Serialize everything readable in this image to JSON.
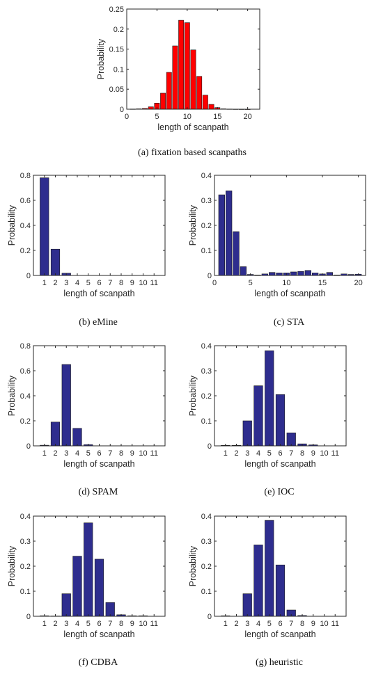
{
  "colors": {
    "red_bar": "#ff0000",
    "blue_bar": "#2e2d8e",
    "edge": "#1a1a1a"
  },
  "chart_data": [
    {
      "id": "a",
      "type": "bar",
      "caption": "(a) fixation based scanpaths",
      "xlabel": "length of scanpath",
      "ylabel": "Probability",
      "xlim": [
        0,
        22
      ],
      "ylim": [
        0,
        0.25
      ],
      "xticks": [
        0,
        5,
        10,
        15,
        20
      ],
      "xtick_labels": [
        "0",
        "5",
        "10",
        "15",
        "20"
      ],
      "yticks": [
        0,
        0.05,
        0.1,
        0.15,
        0.2,
        0.25
      ],
      "ytick_labels": [
        "0",
        "0.05",
        "0.1",
        "0.15",
        "0.2",
        "0.25"
      ],
      "grid": false,
      "color": "red",
      "x": [
        1,
        2,
        3,
        4,
        5,
        6,
        7,
        8,
        9,
        10,
        11,
        12,
        13,
        14,
        15,
        16,
        17,
        18,
        19,
        20
      ],
      "values": [
        0.0005,
        0.001,
        0.002,
        0.006,
        0.015,
        0.04,
        0.092,
        0.158,
        0.222,
        0.216,
        0.148,
        0.082,
        0.035,
        0.012,
        0.004,
        0.001,
        0.0005,
        0.0003,
        0.0002,
        0.0001
      ]
    },
    {
      "id": "b",
      "type": "bar",
      "caption": "(b) eMine",
      "xlabel": "length of scanpath",
      "ylabel": "Probability",
      "xlim": [
        0,
        12
      ],
      "ylim": [
        0,
        0.8
      ],
      "xticks": [
        1,
        2,
        3,
        4,
        5,
        6,
        7,
        8,
        9,
        10,
        11
      ],
      "xtick_labels": [
        "1",
        "2",
        "3",
        "4",
        "5",
        "6",
        "7",
        "8",
        "9",
        "10",
        "11"
      ],
      "yticks": [
        0,
        0.2,
        0.4,
        0.6,
        0.8
      ],
      "ytick_labels": [
        "0",
        "0.2",
        "0.4",
        "0.6",
        "0.8"
      ],
      "grid": false,
      "color": "blue",
      "x": [
        1,
        2,
        3,
        4,
        5,
        6,
        7,
        8,
        9,
        10,
        11
      ],
      "values": [
        0.78,
        0.21,
        0.018,
        0,
        0,
        0,
        0,
        0,
        0,
        0,
        0
      ]
    },
    {
      "id": "c",
      "type": "bar",
      "caption": "(c) STA",
      "xlabel": "length of scanpath",
      "ylabel": "Probability",
      "xlim": [
        0,
        21
      ],
      "ylim": [
        0,
        0.4
      ],
      "xticks": [
        0,
        5,
        10,
        15,
        20
      ],
      "xtick_labels": [
        "0",
        "5",
        "10",
        "15",
        "20"
      ],
      "yticks": [
        0,
        0.1,
        0.2,
        0.3,
        0.4
      ],
      "ytick_labels": [
        "0",
        "0.1",
        "0.2",
        "0.3",
        "0.4"
      ],
      "grid": false,
      "color": "blue",
      "x": [
        1,
        2,
        3,
        4,
        5,
        6,
        7,
        8,
        9,
        10,
        11,
        12,
        13,
        14,
        15,
        16,
        17,
        18,
        19,
        20
      ],
      "values": [
        0.322,
        0.338,
        0.175,
        0.035,
        0.004,
        0.002,
        0.006,
        0.012,
        0.01,
        0.01,
        0.014,
        0.016,
        0.02,
        0.01,
        0.006,
        0.012,
        0.002,
        0.006,
        0.004,
        0.005
      ]
    },
    {
      "id": "d",
      "type": "bar",
      "caption": "(d) SPAM",
      "xlabel": "length of scanpath",
      "ylabel": "Probability",
      "xlim": [
        0,
        12
      ],
      "ylim": [
        0,
        0.8
      ],
      "xticks": [
        1,
        2,
        3,
        4,
        5,
        6,
        7,
        8,
        9,
        10,
        11
      ],
      "xtick_labels": [
        "1",
        "2",
        "3",
        "4",
        "5",
        "6",
        "7",
        "8",
        "9",
        "10",
        "11"
      ],
      "yticks": [
        0,
        0.2,
        0.4,
        0.6,
        0.8
      ],
      "ytick_labels": [
        "0",
        "0.2",
        "0.4",
        "0.6",
        "0.8"
      ],
      "grid": false,
      "color": "blue",
      "x": [
        1,
        2,
        3,
        4,
        5,
        6,
        7,
        8,
        9,
        10,
        11
      ],
      "values": [
        0.005,
        0.19,
        0.65,
        0.14,
        0.01,
        0,
        0,
        0,
        0,
        0,
        0
      ]
    },
    {
      "id": "e",
      "type": "bar",
      "caption": "(e) IOC",
      "xlabel": "length of scanpath",
      "ylabel": "Probability",
      "xlim": [
        0,
        12
      ],
      "ylim": [
        0,
        0.4
      ],
      "xticks": [
        1,
        2,
        3,
        4,
        5,
        6,
        7,
        8,
        9,
        10,
        11
      ],
      "xtick_labels": [
        "1",
        "2",
        "3",
        "4",
        "5",
        "6",
        "7",
        "8",
        "9",
        "10",
        "11"
      ],
      "yticks": [
        0,
        0.1,
        0.2,
        0.3,
        0.4
      ],
      "ytick_labels": [
        "0",
        "0.1",
        "0.2",
        "0.3",
        "0.4"
      ],
      "grid": false,
      "color": "blue",
      "x": [
        1,
        2,
        3,
        4,
        5,
        6,
        7,
        8,
        9,
        10,
        11
      ],
      "values": [
        0.002,
        0.002,
        0.1,
        0.24,
        0.38,
        0.205,
        0.052,
        0.008,
        0.004,
        0,
        0
      ]
    },
    {
      "id": "f",
      "type": "bar",
      "caption": "(f) CDBA",
      "xlabel": "length of scanpath",
      "ylabel": "Probability",
      "xlim": [
        0,
        12
      ],
      "ylim": [
        0,
        0.4
      ],
      "xticks": [
        1,
        2,
        3,
        4,
        5,
        6,
        7,
        8,
        9,
        10,
        11
      ],
      "xtick_labels": [
        "1",
        "2",
        "3",
        "4",
        "5",
        "6",
        "7",
        "8",
        "9",
        "10",
        "11"
      ],
      "yticks": [
        0,
        0.1,
        0.2,
        0.3,
        0.4
      ],
      "ytick_labels": [
        "0",
        "0.1",
        "0.2",
        "0.3",
        "0.4"
      ],
      "grid": false,
      "color": "blue",
      "x": [
        1,
        2,
        3,
        4,
        5,
        6,
        7,
        8,
        9,
        10,
        11
      ],
      "values": [
        0.002,
        0.001,
        0.09,
        0.24,
        0.373,
        0.228,
        0.055,
        0.006,
        0.002,
        0.002,
        0
      ]
    },
    {
      "id": "g",
      "type": "bar",
      "caption": "(g) heuristic",
      "xlabel": "length of scanpath",
      "ylabel": "Probability",
      "xlim": [
        0,
        12
      ],
      "ylim": [
        0,
        0.4
      ],
      "xticks": [
        1,
        2,
        3,
        4,
        5,
        6,
        7,
        8,
        9,
        10,
        11
      ],
      "xtick_labels": [
        "1",
        "2",
        "3",
        "4",
        "5",
        "6",
        "7",
        "8",
        "9",
        "10",
        "11"
      ],
      "yticks": [
        0,
        0.1,
        0.2,
        0.3,
        0.4
      ],
      "ytick_labels": [
        "0",
        "0.1",
        "0.2",
        "0.3",
        "0.4"
      ],
      "grid": false,
      "color": "blue",
      "x": [
        1,
        2,
        3,
        4,
        5,
        6,
        7,
        8,
        9,
        10,
        11
      ],
      "values": [
        0.002,
        0,
        0.09,
        0.285,
        0.383,
        0.205,
        0.025,
        0.003,
        0,
        0,
        0
      ]
    }
  ]
}
